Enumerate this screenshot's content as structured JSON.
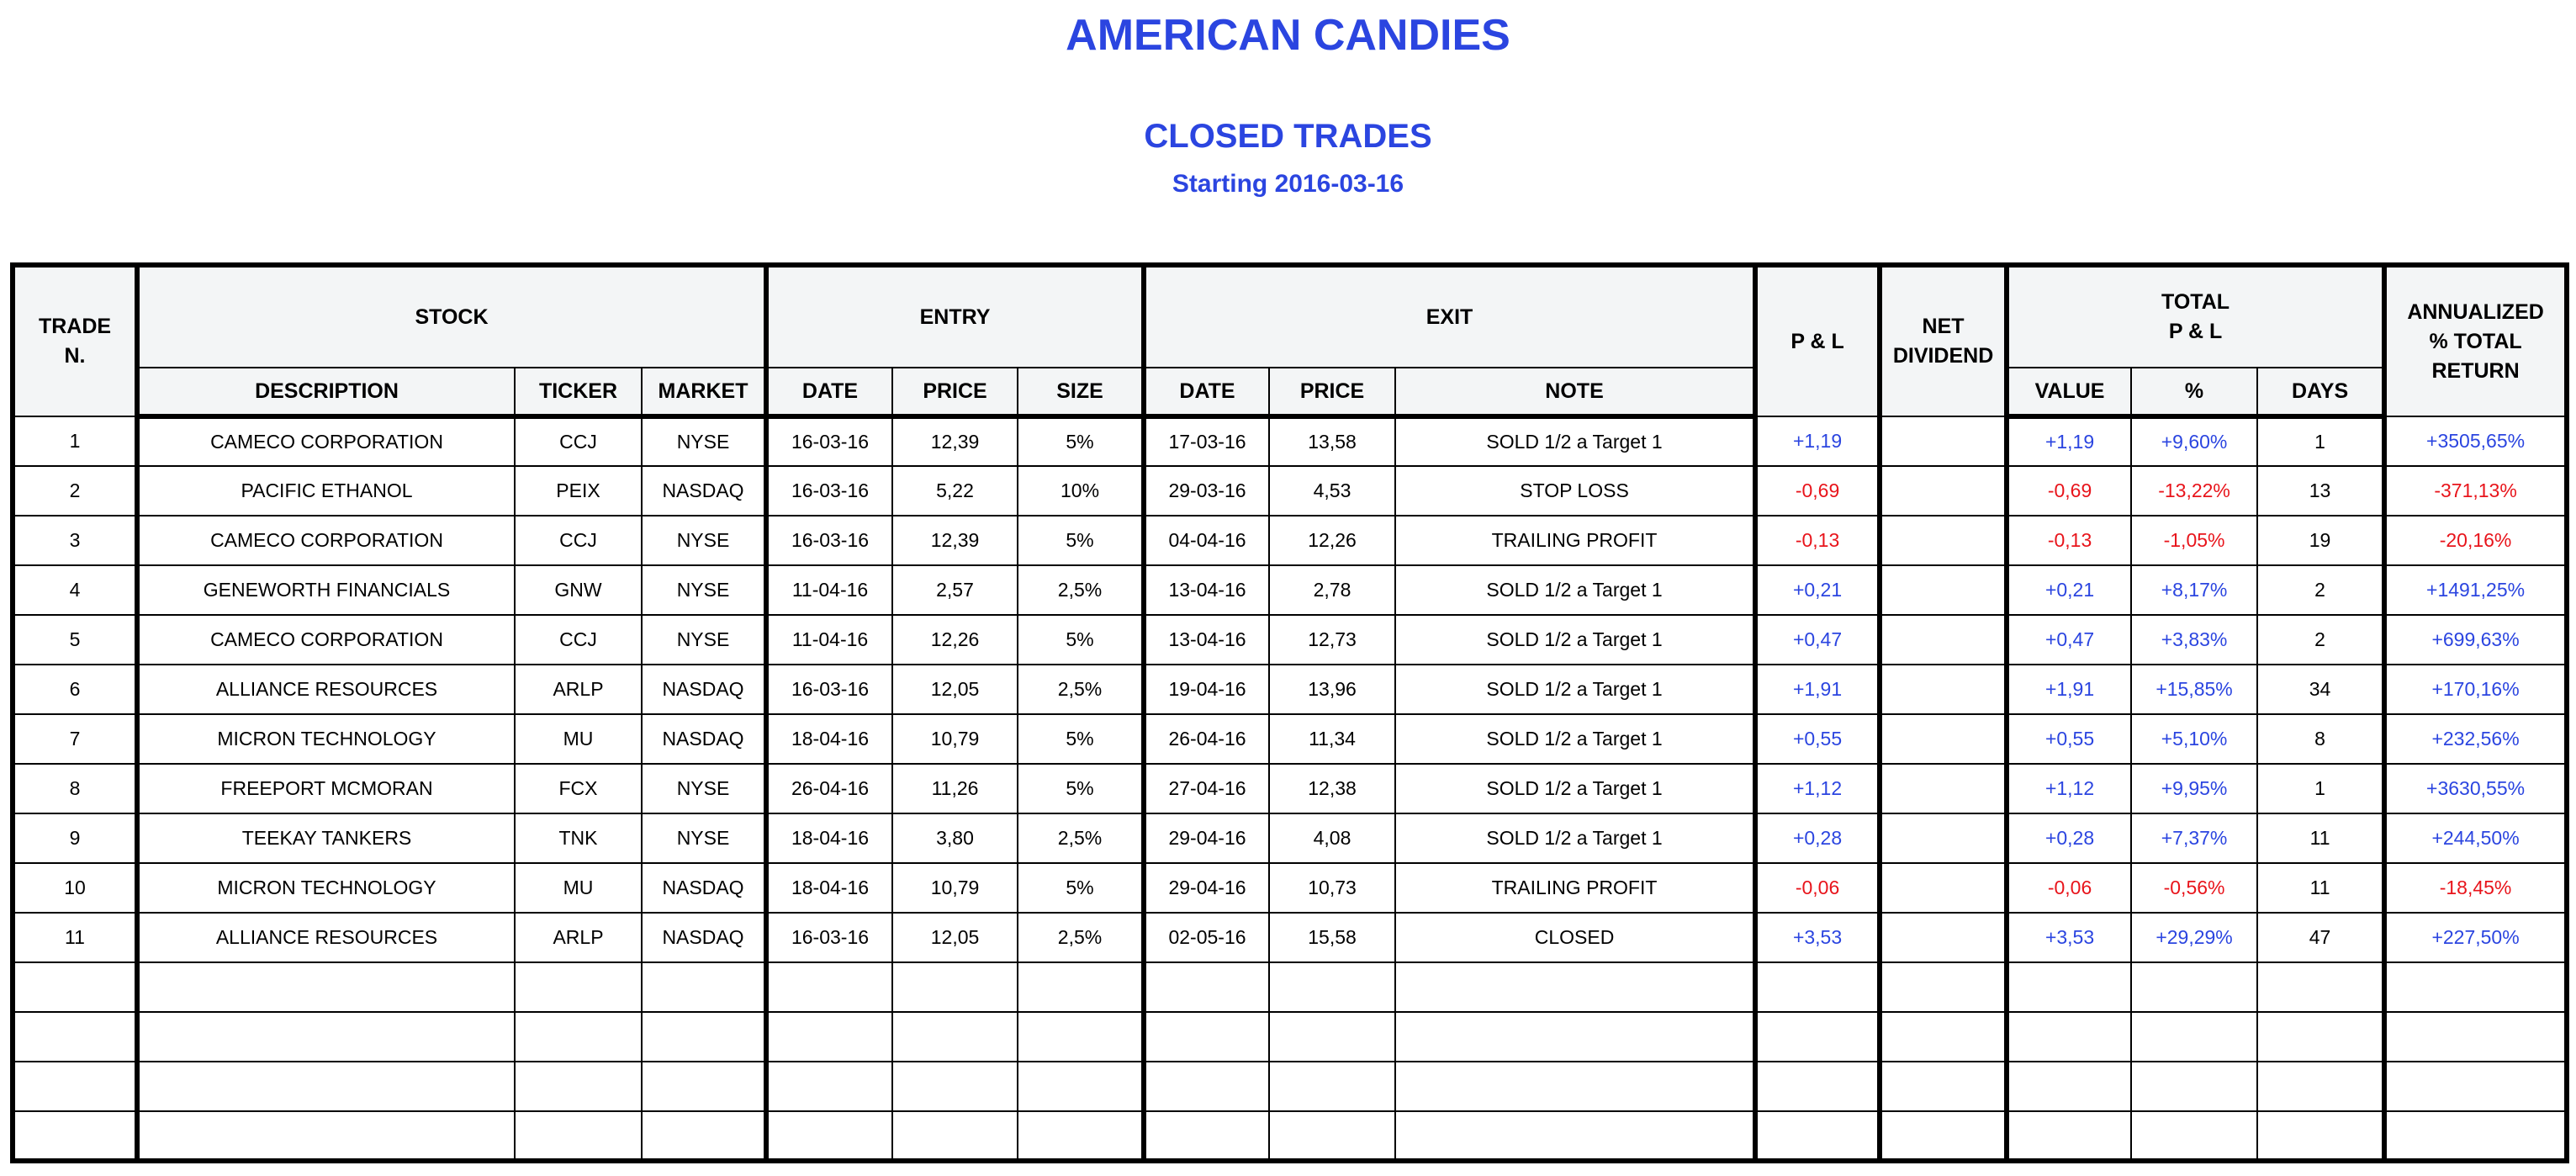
{
  "header": {
    "title": "AMERICAN CANDIES",
    "subtitle": "CLOSED TRADES",
    "start": "Starting 2016-03-16"
  },
  "table": {
    "groups": [
      "TRADE\nN.",
      "STOCK",
      "ENTRY",
      "EXIT",
      "P & L",
      "NET\nDIVIDEND",
      "TOTAL\nP & L",
      "ANNUALIZED\n% TOTAL\nRETURN"
    ],
    "columns": [
      "DESCRIPTION",
      "TICKER",
      "MARKET",
      "DATE",
      "PRICE",
      "SIZE",
      "DATE",
      "PRICE",
      "NOTE",
      "VALUE",
      "%",
      "DAYS"
    ],
    "rows": [
      [
        "1",
        "CAMECO CORPORATION",
        "CCJ",
        "NYSE",
        "16-03-16",
        "12,39",
        "5%",
        "17-03-16",
        "13,58",
        "SOLD 1/2 a Target 1",
        "+1,19",
        "+1,19",
        "+9,60%",
        "1",
        "+3505,65%"
      ],
      [
        "2",
        "PACIFIC ETHANOL",
        "PEIX",
        "NASDAQ",
        "16-03-16",
        "5,22",
        "10%",
        "29-03-16",
        "4,53",
        "STOP LOSS",
        "-0,69",
        "-0,69",
        "-13,22%",
        "13",
        "-371,13%"
      ],
      [
        "3",
        "CAMECO CORPORATION",
        "CCJ",
        "NYSE",
        "16-03-16",
        "12,39",
        "5%",
        "04-04-16",
        "12,26",
        "TRAILING PROFIT",
        "-0,13",
        "-0,13",
        "-1,05%",
        "19",
        "-20,16%"
      ],
      [
        "4",
        "GENEWORTH FINANCIALS",
        "GNW",
        "NYSE",
        "11-04-16",
        "2,57",
        "2,5%",
        "13-04-16",
        "2,78",
        "SOLD 1/2 a Target 1",
        "+0,21",
        "+0,21",
        "+8,17%",
        "2",
        "+1491,25%"
      ],
      [
        "5",
        "CAMECO CORPORATION",
        "CCJ",
        "NYSE",
        "11-04-16",
        "12,26",
        "5%",
        "13-04-16",
        "12,73",
        "SOLD 1/2 a Target 1",
        "+0,47",
        "+0,47",
        "+3,83%",
        "2",
        "+699,63%"
      ],
      [
        "6",
        "ALLIANCE RESOURCES",
        "ARLP",
        "NASDAQ",
        "16-03-16",
        "12,05",
        "2,5%",
        "19-04-16",
        "13,96",
        "SOLD 1/2 a Target 1",
        "+1,91",
        "+1,91",
        "+15,85%",
        "34",
        "+170,16%"
      ],
      [
        "7",
        "MICRON TECHNOLOGY",
        "MU",
        "NASDAQ",
        "18-04-16",
        "10,79",
        "5%",
        "26-04-16",
        "11,34",
        "SOLD 1/2 a Target 1",
        "+0,55",
        "+0,55",
        "+5,10%",
        "8",
        "+232,56%"
      ],
      [
        "8",
        "FREEPORT MCMORAN",
        "FCX",
        "NYSE",
        "26-04-16",
        "11,26",
        "5%",
        "27-04-16",
        "12,38",
        "SOLD 1/2 a Target 1",
        "+1,12",
        "+1,12",
        "+9,95%",
        "1",
        "+3630,55%"
      ],
      [
        "9",
        "TEEKAY TANKERS",
        "TNK",
        "NYSE",
        "18-04-16",
        "3,80",
        "2,5%",
        "29-04-16",
        "4,08",
        "SOLD 1/2 a Target 1",
        "+0,28",
        "+0,28",
        "+7,37%",
        "11",
        "+244,50%"
      ],
      [
        "10",
        "MICRON TECHNOLOGY",
        "MU",
        "NASDAQ",
        "18-04-16",
        "10,79",
        "5%",
        "29-04-16",
        "10,73",
        "TRAILING PROFIT",
        "-0,06",
        "-0,06",
        "-0,56%",
        "11",
        "-18,45%"
      ],
      [
        "11",
        "ALLIANCE RESOURCES",
        "ARLP",
        "NASDAQ",
        "16-03-16",
        "12,05",
        "2,5%",
        "02-05-16",
        "15,58",
        "CLOSED",
        "+3,53",
        "+3,53",
        "+29,29%",
        "47",
        "+227,50%"
      ]
    ]
  }
}
